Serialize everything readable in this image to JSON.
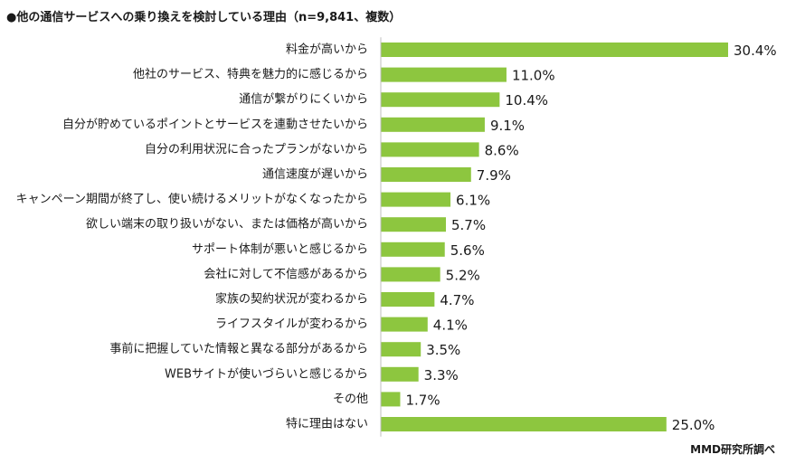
{
  "chart_data": {
    "type": "bar",
    "orientation": "horizontal",
    "title": "●他の通信サービスへの乗り換えを検討している理由（n=9,841、複数）",
    "source": "MMD研究所調べ",
    "categories": [
      "料金が高いから",
      "他社のサービス、特典を魅力的に感じるから",
      "通信が繋がりにくいから",
      "自分が貯めているポイントとサービスを連動させたいから",
      "自分の利用状況に合ったプランがないから",
      "通信速度が遅いから",
      "キャンペーン期間が終了し、使い続けるメリットがなくなったから",
      "欲しい端末の取り扱いがない、または価格が高いから",
      "サポート体制が悪いと感じるから",
      "会社に対して不信感があるから",
      "家族の契約状況が変わるから",
      "ライフスタイルが変わるから",
      "事前に把握していた情報と異なる部分があるから",
      "WEBサイトが使いづらいと感じるから",
      "その他",
      "特に理由はない"
    ],
    "values": [
      30.4,
      11.0,
      10.4,
      9.1,
      8.6,
      7.9,
      6.1,
      5.7,
      5.6,
      5.2,
      4.7,
      4.1,
      3.5,
      3.3,
      1.7,
      25.0
    ],
    "value_labels": [
      "30.4%",
      "11.0%",
      "10.4%",
      "9.1%",
      "8.6%",
      "7.9%",
      "6.1%",
      "5.7%",
      "5.6%",
      "5.2%",
      "4.7%",
      "4.1%",
      "3.5%",
      "3.3%",
      "1.7%",
      "25.0%"
    ],
    "xlim": [
      0,
      30.4
    ],
    "grid": false,
    "legend": "none",
    "bar_color": "#8dc63f",
    "axis_color": "#bfbfbf"
  }
}
